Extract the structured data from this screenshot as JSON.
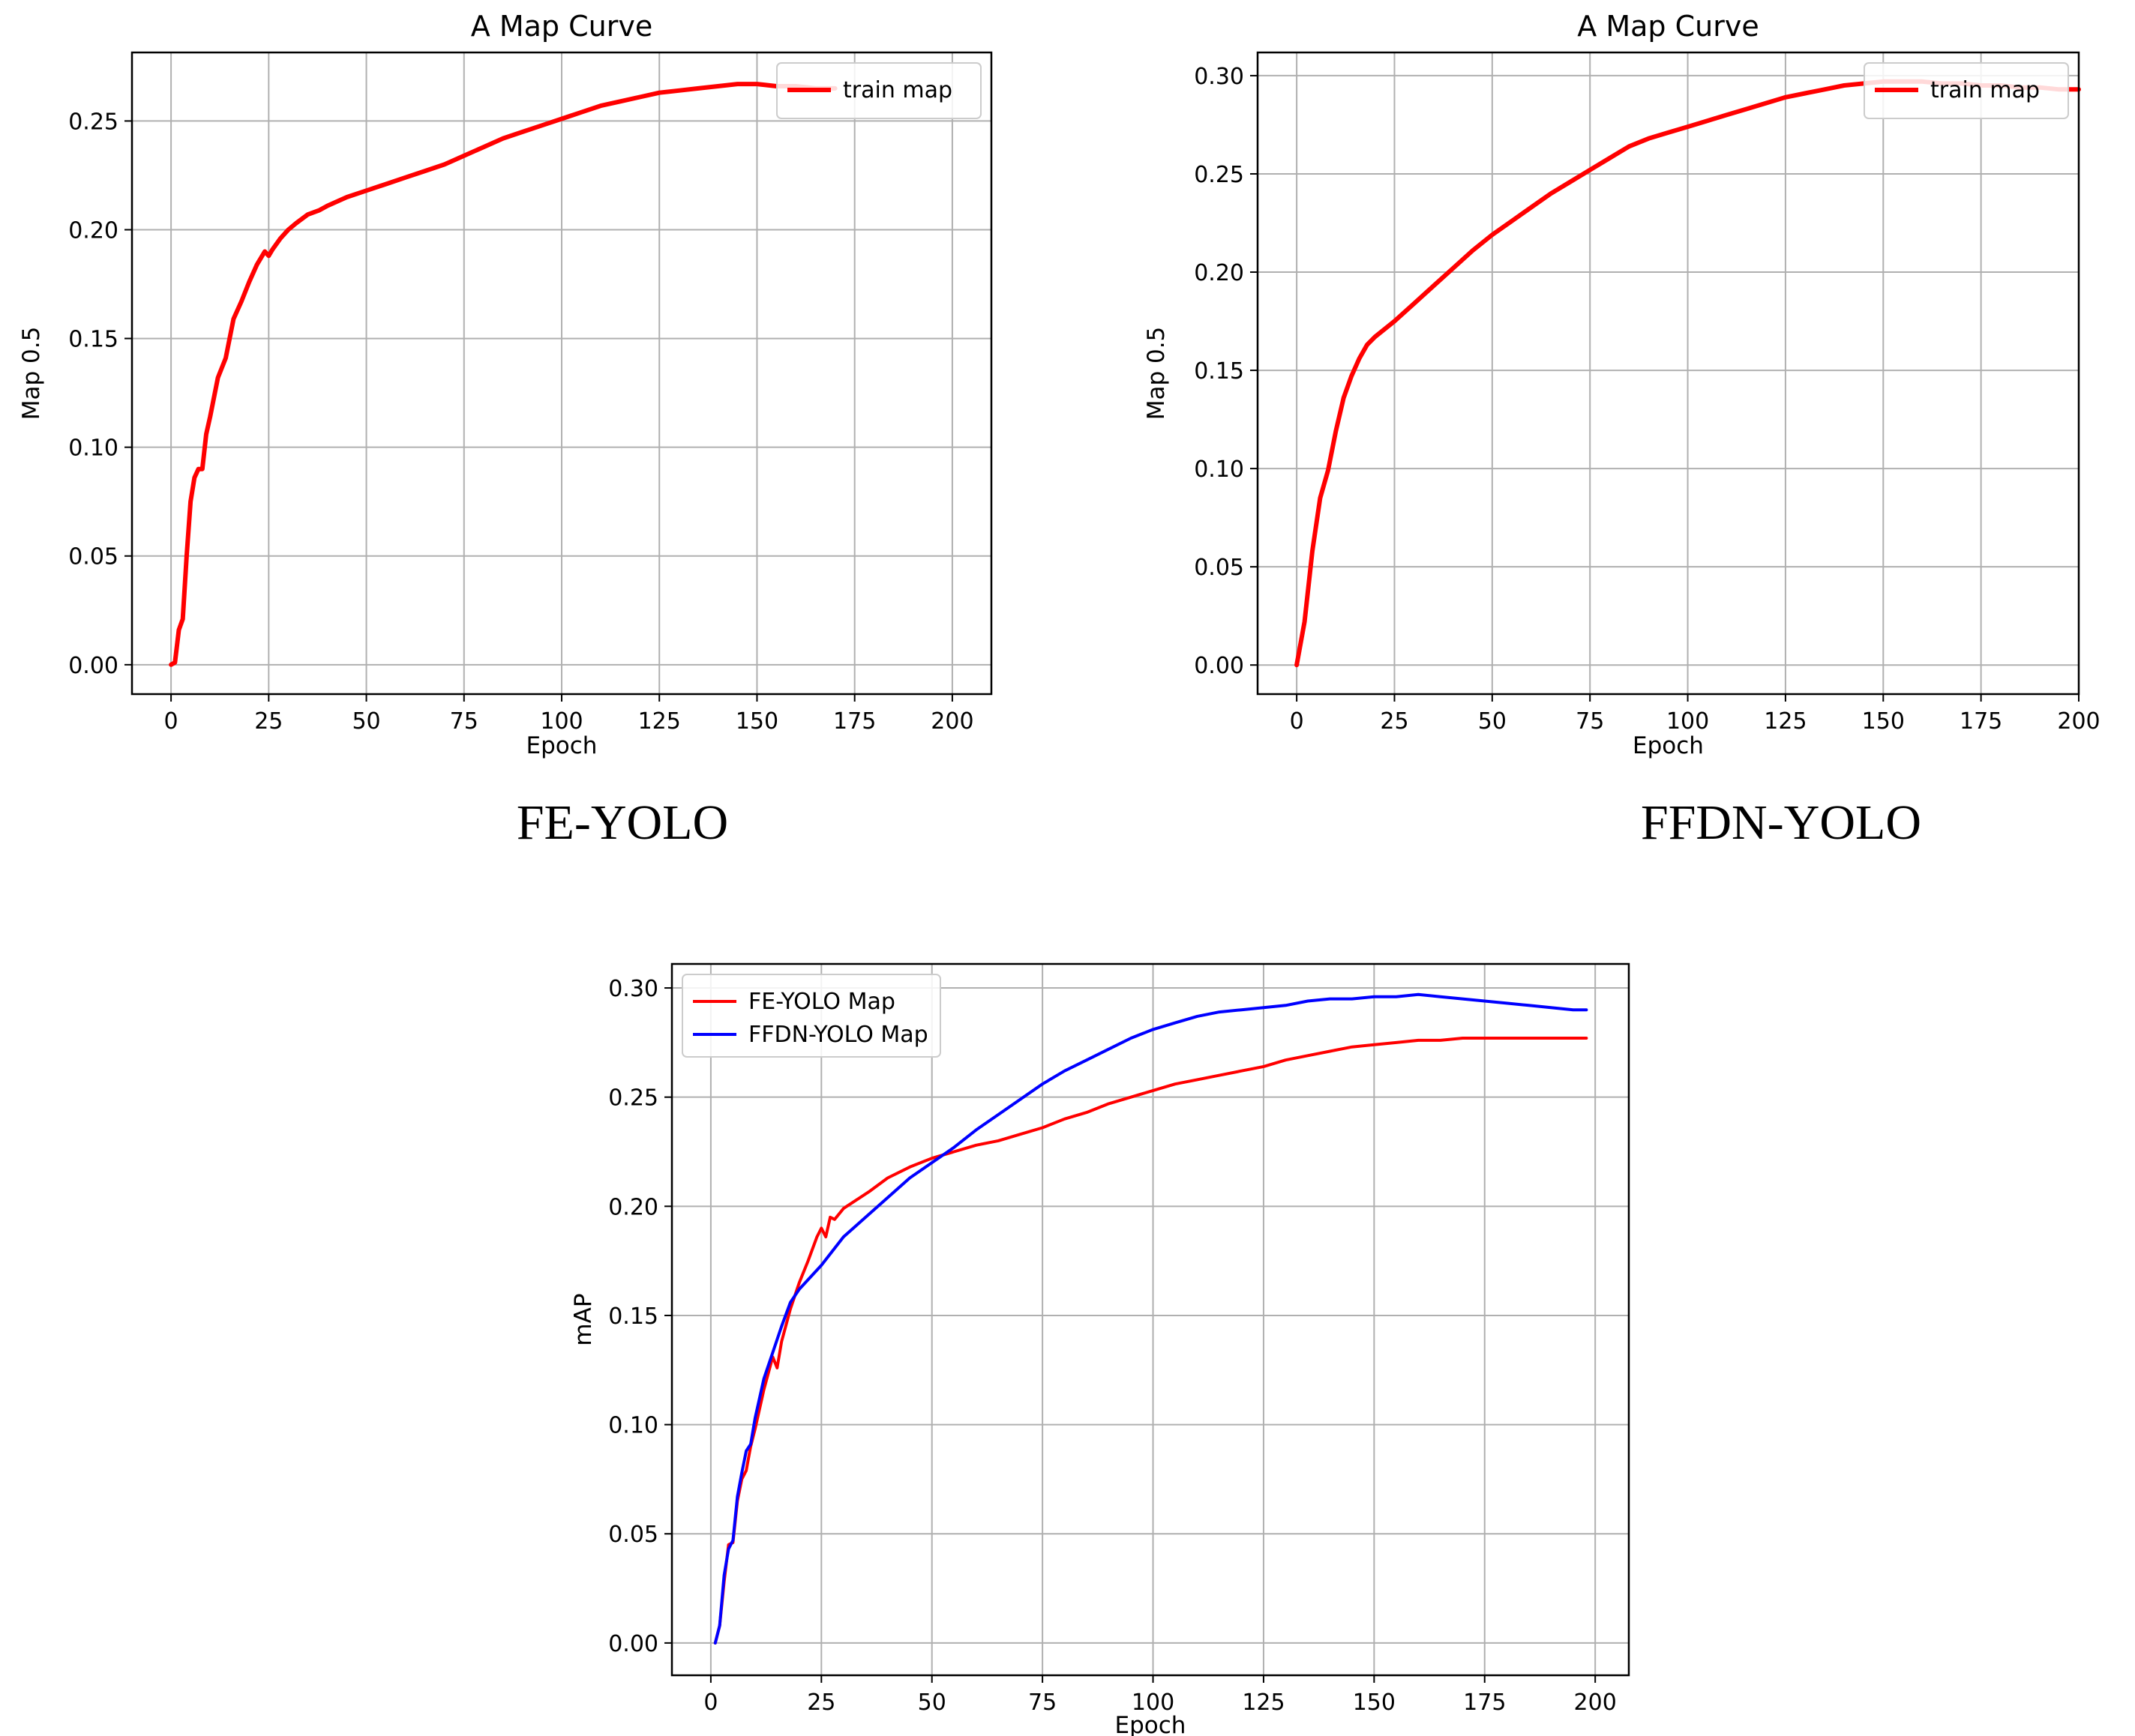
{
  "chart_data": [
    {
      "id": "fe-yolo",
      "type": "line",
      "title": "A Map Curve",
      "xlabel": "Epoch",
      "ylabel": "Map 0.5",
      "xlim": [
        -10,
        210
      ],
      "ylim": [
        -0.0135,
        0.2815
      ],
      "xticks": [
        0,
        25,
        50,
        75,
        100,
        125,
        150,
        175,
        200
      ],
      "yticks": [
        0.0,
        0.05,
        0.1,
        0.15,
        0.2,
        0.25
      ],
      "grid": true,
      "legend_position": "top-right",
      "series": [
        {
          "name": "train map",
          "color": "#ff0000",
          "x": [
            0,
            1,
            2,
            3,
            4,
            5,
            6,
            7,
            8,
            9,
            10,
            12,
            14,
            16,
            18,
            20,
            22,
            24,
            25,
            26,
            28,
            30,
            32,
            35,
            38,
            40,
            45,
            50,
            55,
            60,
            65,
            70,
            75,
            80,
            85,
            90,
            95,
            100,
            105,
            110,
            115,
            120,
            125,
            130,
            135,
            140,
            145,
            150,
            155,
            160,
            165,
            170
          ],
          "y": [
            0.0,
            0.001,
            0.016,
            0.021,
            0.05,
            0.075,
            0.086,
            0.09,
            0.09,
            0.106,
            0.114,
            0.132,
            0.141,
            0.159,
            0.167,
            0.176,
            0.184,
            0.19,
            0.188,
            0.191,
            0.196,
            0.2,
            0.203,
            0.207,
            0.209,
            0.211,
            0.215,
            0.218,
            0.221,
            0.224,
            0.227,
            0.23,
            0.234,
            0.238,
            0.242,
            0.245,
            0.248,
            0.251,
            0.254,
            0.257,
            0.259,
            0.261,
            0.263,
            0.264,
            0.265,
            0.266,
            0.267,
            0.267,
            0.266,
            0.266,
            0.265,
            0.265
          ]
        }
      ]
    },
    {
      "id": "ffdn-yolo",
      "type": "line",
      "title": "A Map Curve",
      "xlabel": "Epoch",
      "ylabel": "Map 0.5",
      "xlim": [
        -10,
        200
      ],
      "ylim": [
        -0.0148,
        0.3118
      ],
      "xticks": [
        0,
        25,
        50,
        75,
        100,
        125,
        150,
        175,
        200
      ],
      "yticks": [
        0.0,
        0.05,
        0.1,
        0.15,
        0.2,
        0.25,
        0.3
      ],
      "grid": true,
      "legend_position": "top-right",
      "series": [
        {
          "name": "train map",
          "color": "#ff0000",
          "x": [
            0,
            2,
            4,
            6,
            8,
            10,
            12,
            14,
            16,
            18,
            20,
            25,
            30,
            35,
            40,
            45,
            50,
            55,
            60,
            65,
            70,
            75,
            80,
            85,
            90,
            95,
            100,
            105,
            110,
            115,
            120,
            125,
            130,
            135,
            140,
            145,
            150,
            155,
            160,
            165,
            170,
            175,
            180,
            185,
            190,
            195,
            200
          ],
          "y": [
            0.0,
            0.022,
            0.058,
            0.085,
            0.099,
            0.119,
            0.136,
            0.147,
            0.156,
            0.163,
            0.167,
            0.175,
            0.184,
            0.193,
            0.202,
            0.211,
            0.219,
            0.226,
            0.233,
            0.24,
            0.246,
            0.252,
            0.258,
            0.264,
            0.268,
            0.271,
            0.274,
            0.277,
            0.28,
            0.283,
            0.286,
            0.289,
            0.291,
            0.293,
            0.295,
            0.296,
            0.297,
            0.297,
            0.297,
            0.296,
            0.296,
            0.295,
            0.295,
            0.294,
            0.294,
            0.293,
            0.293
          ]
        }
      ]
    },
    {
      "id": "comparison",
      "type": "line",
      "title": "",
      "xlabel": "Epoch",
      "ylabel": "mAP",
      "xlim": [
        -8.8,
        207.6
      ],
      "ylim": [
        -0.0148,
        0.311
      ],
      "xticks": [
        0,
        25,
        50,
        75,
        100,
        125,
        150,
        175,
        200
      ],
      "yticks": [
        0.0,
        0.05,
        0.1,
        0.15,
        0.2,
        0.25,
        0.3
      ],
      "grid": true,
      "legend_position": "top-left",
      "series": [
        {
          "name": "FE-YOLO Map",
          "color": "#ff0000",
          "x": [
            1,
            2,
            3,
            4,
            5,
            6,
            7,
            8,
            9,
            10,
            12,
            14,
            15,
            16,
            18,
            20,
            22,
            24,
            25,
            26,
            27,
            28,
            30,
            33,
            36,
            40,
            45,
            50,
            55,
            60,
            65,
            70,
            75,
            80,
            85,
            90,
            95,
            100,
            105,
            110,
            115,
            120,
            125,
            130,
            135,
            140,
            145,
            150,
            155,
            160,
            165,
            170,
            175,
            180,
            185,
            190,
            195,
            198
          ],
          "y": [
            0.0,
            0.008,
            0.028,
            0.045,
            0.046,
            0.065,
            0.075,
            0.079,
            0.09,
            0.098,
            0.116,
            0.131,
            0.126,
            0.138,
            0.153,
            0.165,
            0.175,
            0.186,
            0.19,
            0.186,
            0.195,
            0.194,
            0.199,
            0.203,
            0.207,
            0.213,
            0.218,
            0.222,
            0.225,
            0.228,
            0.23,
            0.233,
            0.236,
            0.24,
            0.243,
            0.247,
            0.25,
            0.253,
            0.256,
            0.258,
            0.26,
            0.262,
            0.264,
            0.267,
            0.269,
            0.271,
            0.273,
            0.274,
            0.275,
            0.276,
            0.276,
            0.277,
            0.277,
            0.277,
            0.277,
            0.277,
            0.277,
            0.277
          ]
        },
        {
          "name": "FFDN-YOLO Map",
          "color": "#0000ff",
          "x": [
            1,
            2,
            3,
            4,
            5,
            6,
            7,
            8,
            9,
            10,
            12,
            14,
            16,
            18,
            20,
            25,
            30,
            35,
            40,
            45,
            50,
            55,
            60,
            65,
            70,
            75,
            80,
            85,
            90,
            95,
            100,
            105,
            110,
            115,
            120,
            125,
            130,
            135,
            140,
            145,
            150,
            155,
            160,
            165,
            170,
            175,
            180,
            185,
            190,
            195,
            198
          ],
          "y": [
            0.0,
            0.008,
            0.031,
            0.043,
            0.047,
            0.067,
            0.078,
            0.088,
            0.091,
            0.103,
            0.121,
            0.133,
            0.145,
            0.156,
            0.162,
            0.173,
            0.186,
            0.195,
            0.204,
            0.213,
            0.22,
            0.227,
            0.235,
            0.242,
            0.249,
            0.256,
            0.262,
            0.267,
            0.272,
            0.277,
            0.281,
            0.284,
            0.287,
            0.289,
            0.29,
            0.291,
            0.292,
            0.294,
            0.295,
            0.295,
            0.296,
            0.296,
            0.297,
            0.296,
            0.295,
            0.294,
            0.293,
            0.292,
            0.291,
            0.29,
            0.29
          ]
        }
      ]
    }
  ],
  "captions": {
    "left": "FE-YOLO",
    "right": "FFDN-YOLO"
  }
}
